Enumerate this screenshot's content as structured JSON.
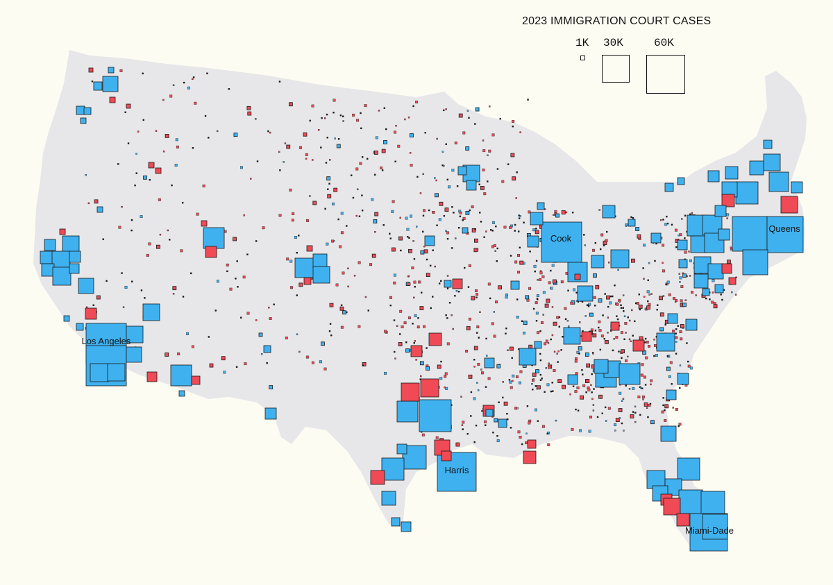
{
  "legend": {
    "title": "2023 IMMIGRATION COURT CASES",
    "sizes": [
      {
        "label": "1K",
        "cases": 1000
      },
      {
        "label": "30K",
        "cases": 30000
      },
      {
        "label": "60K",
        "cases": 60000
      }
    ]
  },
  "colors": {
    "background": "#fdfcf3",
    "land": "#e7e7e9",
    "blue": "#3fb1ef",
    "red": "#ef4a55",
    "outline": "#1a1a1a"
  },
  "labels": {
    "los_angeles": "Los Angeles",
    "cook": "Cook",
    "harris": "Harris",
    "queens": "Queens",
    "miami_dade": "Miami-Dade"
  }
}
